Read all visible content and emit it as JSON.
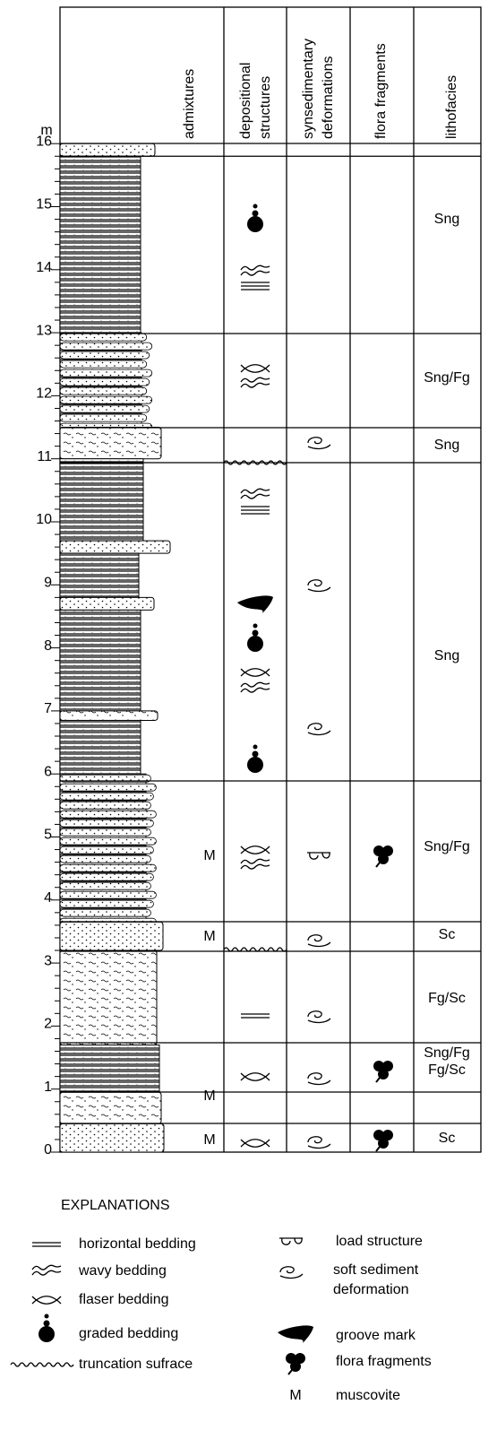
{
  "axis": {
    "unit": "m",
    "ticks": [
      "0",
      "1",
      "2",
      "3",
      "4",
      "5",
      "6",
      "7",
      "8",
      "9",
      "10",
      "11",
      "12",
      "13",
      "14",
      "15",
      "16"
    ]
  },
  "columns": [
    {
      "lines": [
        "admixtures"
      ]
    },
    {
      "lines": [
        "depositional",
        "structures"
      ]
    },
    {
      "lines": [
        "synsedimentary",
        "deformations"
      ]
    },
    {
      "lines": [
        "flora fragments"
      ]
    },
    {
      "lines": [
        "lithofacies"
      ]
    }
  ],
  "lithofacies": [
    "Sng",
    "Sng/Fg",
    "Sng",
    "Sng",
    "Sng/Fg",
    "Sc",
    "Fg/Sc",
    "Sng/Fg",
    "Fg/Sc",
    "Sc"
  ],
  "admixtures": [
    "M",
    "M",
    "M",
    "M"
  ],
  "legend": {
    "title": "EXPLANATIONS",
    "items": [
      {
        "lines": [
          "horizontal bedding"
        ]
      },
      {
        "lines": [
          "wavy bedding"
        ]
      },
      {
        "lines": [
          "flaser bedding"
        ]
      },
      {
        "lines": [
          "graded bedding"
        ]
      },
      {
        "lines": [
          "truncation sufrace"
        ]
      },
      {
        "lines": [
          "load structure"
        ]
      },
      {
        "lines": [
          "soft sediment",
          "deformation"
        ]
      },
      {
        "lines": [
          "groove mark"
        ]
      },
      {
        "lines": [
          "flora fragments"
        ]
      },
      {
        "symbol": "M",
        "lines": [
          "muscovite"
        ]
      }
    ]
  }
}
